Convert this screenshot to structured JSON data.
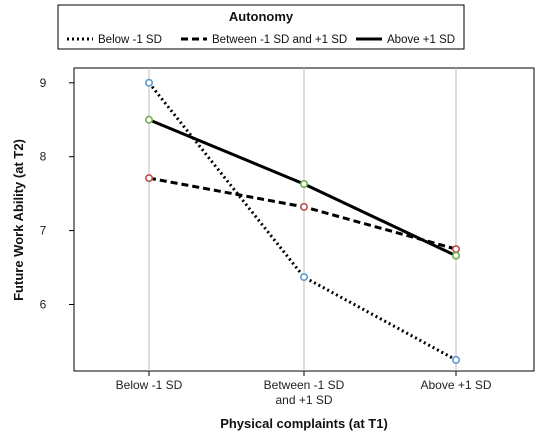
{
  "chart_data": {
    "type": "line",
    "title": "",
    "xlabel": "Physical complaints (at T1)",
    "ylabel": "Future Work Ability (at T2)",
    "categories": [
      [
        "Below -1 SD"
      ],
      [
        "Between -1 SD",
        "and +1 SD"
      ],
      [
        "Above +1 SD"
      ]
    ],
    "ylim": [
      5.1,
      9.2
    ],
    "yticks": [
      "6",
      "7",
      "8",
      "9"
    ],
    "grid": "vertical lines at categories",
    "legend": {
      "title": "Autonomy",
      "placement": "top"
    },
    "series": [
      {
        "name": "Below -1 SD",
        "dash": "dotted",
        "marker_color": "#5b9bd5",
        "values": [
          9.0,
          6.37,
          5.25
        ]
      },
      {
        "name": "Between -1 SD and +1 SD",
        "dash": "dashed",
        "marker_color": "#c0504d",
        "values": [
          7.71,
          7.32,
          6.75
        ]
      },
      {
        "name": "Above +1 SD",
        "dash": "solid",
        "marker_color": "#70ad47",
        "values": [
          8.5,
          7.63,
          6.66
        ]
      }
    ]
  }
}
